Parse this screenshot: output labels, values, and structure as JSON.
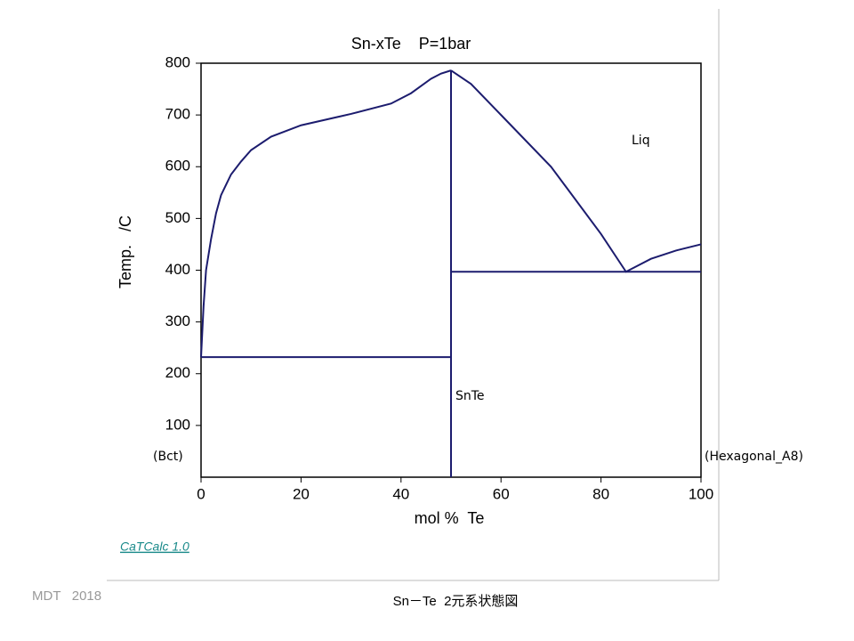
{
  "chart_data": {
    "type": "line",
    "title": "Sn-xTe    P=1bar",
    "x_label": "mol %  Te",
    "y_label": "Temp.   /C",
    "xlim": [
      0,
      100
    ],
    "xticks": [
      0,
      20,
      40,
      60,
      80,
      100
    ],
    "ylim": [
      0,
      800
    ],
    "yticks": [
      100,
      200,
      300,
      400,
      500,
      600,
      700,
      800
    ],
    "color": "#1c1c6e",
    "series": [
      {
        "x": [
          0,
          0.5,
          1,
          2,
          3,
          4,
          6,
          8,
          10,
          14,
          20,
          30,
          38,
          42,
          46,
          48,
          50
        ],
        "values": [
          232,
          330,
          400,
          460,
          510,
          545,
          585,
          610,
          632,
          658,
          680,
          702,
          722,
          742,
          770,
          780,
          786
        ]
      },
      {
        "x": [
          50,
          54,
          60,
          70,
          80,
          85,
          90,
          95,
          100
        ],
        "values": [
          786,
          760,
          700,
          600,
          470,
          397,
          422,
          438,
          450
        ]
      },
      {
        "x": [
          0,
          50
        ],
        "values": [
          232,
          232
        ]
      },
      {
        "x": [
          50,
          100
        ],
        "values": [
          397,
          397
        ]
      },
      {
        "x": [
          50,
          50
        ],
        "values": [
          0,
          786
        ]
      }
    ],
    "annotations": [
      "Liq",
      "SnTe",
      "(Bct)",
      "(Hexagonal_A8)"
    ]
  },
  "software_link": "CaTCalc 1.0",
  "footer_left": "MDT   2018",
  "caption": "Sn－Te  2元系状態図"
}
